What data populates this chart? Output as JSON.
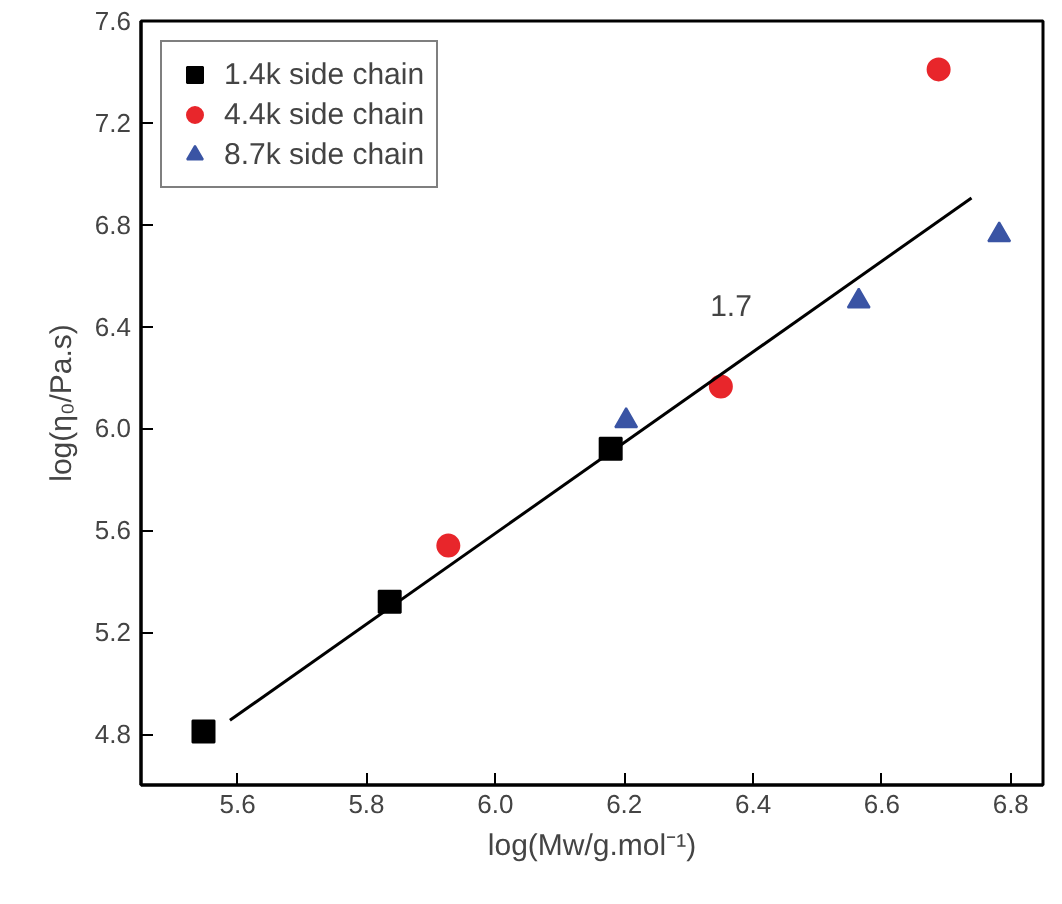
{
  "chart_data": {
    "type": "scatter",
    "xlabel": "log(Mw/g.mol⁻¹)",
    "ylabel": "log(η₀/Pa.s)",
    "xlim": [
      5.45,
      6.85
    ],
    "ylim": [
      4.6,
      7.6
    ],
    "xticks": [
      5.6,
      5.8,
      {
        "value": 6.0,
        "label": "6.0"
      },
      6.2,
      6.4,
      6.6,
      6.8
    ],
    "yticks": [
      4.8,
      5.2,
      5.6,
      {
        "value": 6.0,
        "label": "6.0"
      },
      6.4,
      6.8,
      7.2,
      7.6
    ],
    "grid": false,
    "legend": "top left",
    "annotations": [
      "1.7"
    ],
    "series": [
      {
        "name": "1.4k side chain",
        "color": "#000000",
        "marker": "square",
        "x": [
          5.547,
          5.836,
          6.179
        ],
        "values": [
          4.81,
          5.32,
          5.92
        ]
      },
      {
        "name": "4.4k side chain",
        "color": "#e8262b",
        "marker": "circle",
        "x": [
          5.927,
          6.35,
          6.688
        ],
        "values": [
          5.54,
          6.165,
          7.41
        ]
      },
      {
        "name": "8.7k side chain",
        "color": "#3a54a4",
        "marker": "triangle",
        "x": [
          6.203,
          6.564,
          6.782
        ],
        "values": [
          6.03,
          6.5,
          6.76
        ]
      },
      {
        "type": "line",
        "color": "#000000",
        "line_style": "solid",
        "x": [
          5.588,
          6.739
        ],
        "values": [
          4.854,
          6.905
        ]
      }
    ]
  }
}
